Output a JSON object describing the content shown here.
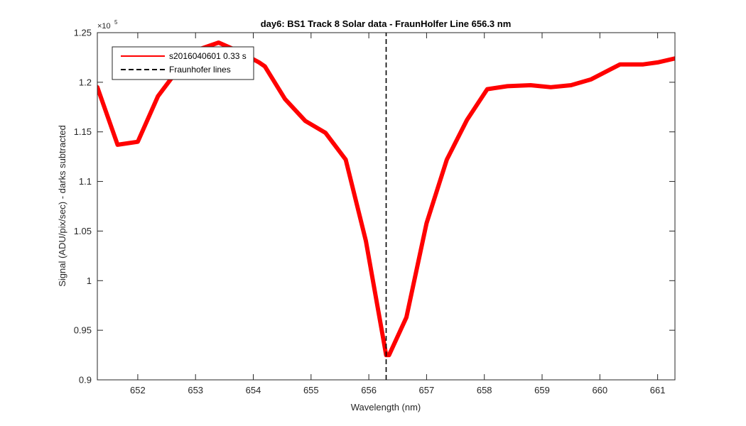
{
  "chart_data": {
    "type": "line",
    "title": "day6: BS1  Track 8 Solar data - FraunHolfer Line 656.3 nm",
    "xlabel": "Wavelength (nm)",
    "ylabel": "Signal (ADU/pix/sec) - darks subtracted",
    "xlim": [
      651.3,
      661.3
    ],
    "ylim": [
      0.9,
      1.25
    ],
    "y_exponent_label": "×10",
    "y_exponent_power": "5",
    "x_ticks": [
      652,
      653,
      654,
      655,
      656,
      657,
      658,
      659,
      660,
      661
    ],
    "x_tick_labels": [
      "652",
      "653",
      "654",
      "655",
      "656",
      "657",
      "658",
      "659",
      "660",
      "661"
    ],
    "y_ticks": [
      0.9,
      0.95,
      1.0,
      1.05,
      1.1,
      1.15,
      1.2,
      1.25
    ],
    "y_tick_labels": [
      "0.9",
      "0.95",
      "1",
      "1.05",
      "1.1",
      "1.15",
      "1.2",
      "1.25"
    ],
    "grid": false,
    "legend_position": "top-left",
    "series": [
      {
        "name": "s2016040601 0.33 s",
        "color": "#ff0000",
        "style": "solid",
        "x": [
          651.3,
          651.65,
          652.0,
          652.35,
          652.7,
          653.05,
          653.4,
          653.75,
          654.1,
          654.2,
          654.55,
          654.9,
          655.25,
          655.6,
          655.95,
          656.3,
          656.35,
          656.65,
          657.0,
          657.35,
          657.7,
          658.05,
          658.4,
          658.8,
          659.15,
          659.5,
          659.85,
          660.15,
          660.35,
          660.75,
          661.0,
          661.3
        ],
        "y": [
          1.195,
          1.137,
          1.14,
          1.186,
          1.213,
          1.233,
          1.24,
          1.231,
          1.22,
          1.216,
          1.183,
          1.161,
          1.149,
          1.122,
          1.04,
          0.925,
          0.925,
          0.963,
          1.058,
          1.122,
          1.162,
          1.193,
          1.196,
          1.197,
          1.195,
          1.197,
          1.203,
          1.212,
          1.218,
          1.218,
          1.22,
          1.224
        ]
      },
      {
        "name": "Fraunhofer lines",
        "color": "#000000",
        "style": "dashed",
        "x": [
          656.3,
          656.3
        ],
        "y": [
          0.9,
          1.25
        ]
      }
    ]
  }
}
